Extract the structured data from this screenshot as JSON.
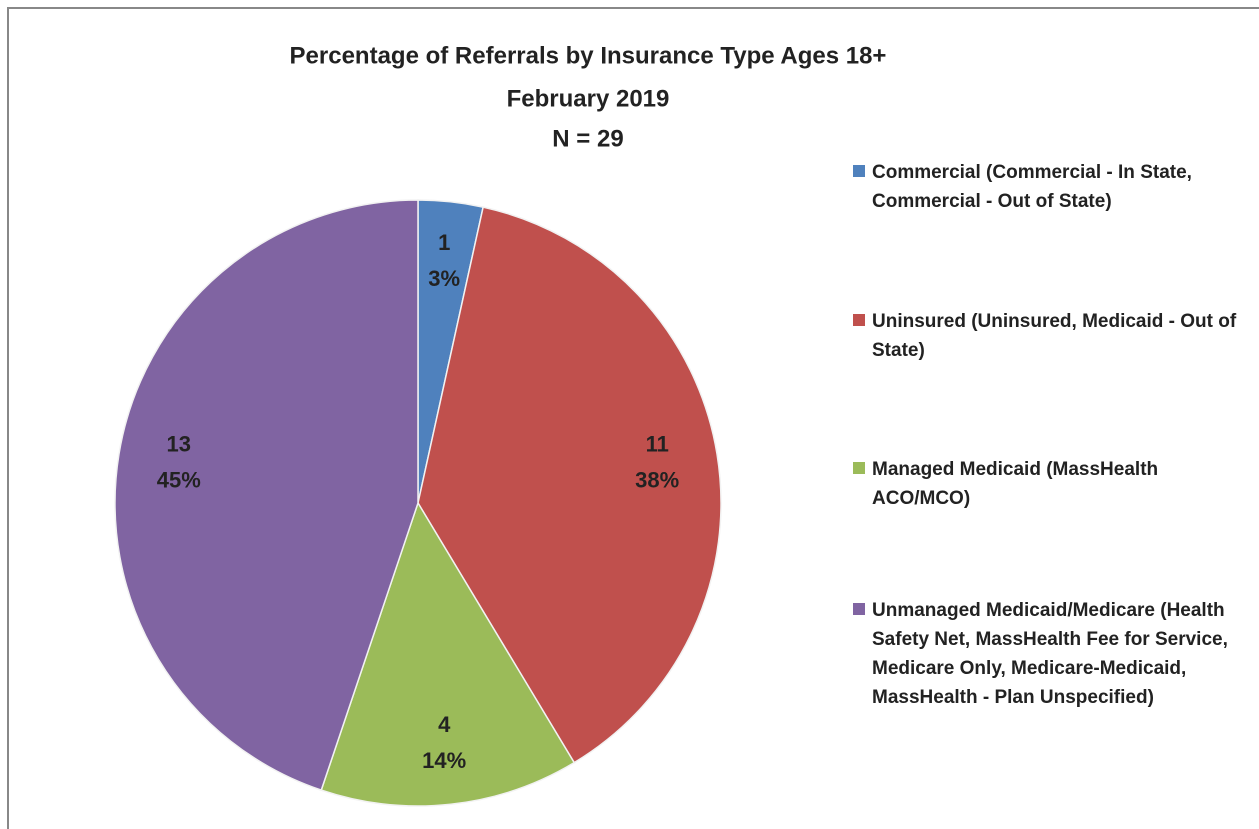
{
  "chart_data": {
    "type": "pie",
    "title": "Percentage of Referrals by Insurance Type Ages 18+",
    "subtitle": "February 2019",
    "note": "N = 29",
    "categories": [
      "Commercial (Commercial - In State, Commercial - Out of State)",
      "Uninsured (Uninsured, Medicaid - Out of State)",
      "Managed Medicaid (MassHealth ACO/MCO)",
      "Unmanaged Medicaid/Medicare (Health Safety Net, MassHealth Fee for Service, Medicare Only, Medicare-Medicaid, MassHealth - Plan Unspecified)"
    ],
    "values": [
      1,
      11,
      4,
      13
    ],
    "percent_labels": [
      "3%",
      "38%",
      "14%",
      "45%"
    ],
    "colors": [
      "#4f81bd",
      "#c0504d",
      "#9bbb59",
      "#8064a2"
    ],
    "legend": "right"
  }
}
